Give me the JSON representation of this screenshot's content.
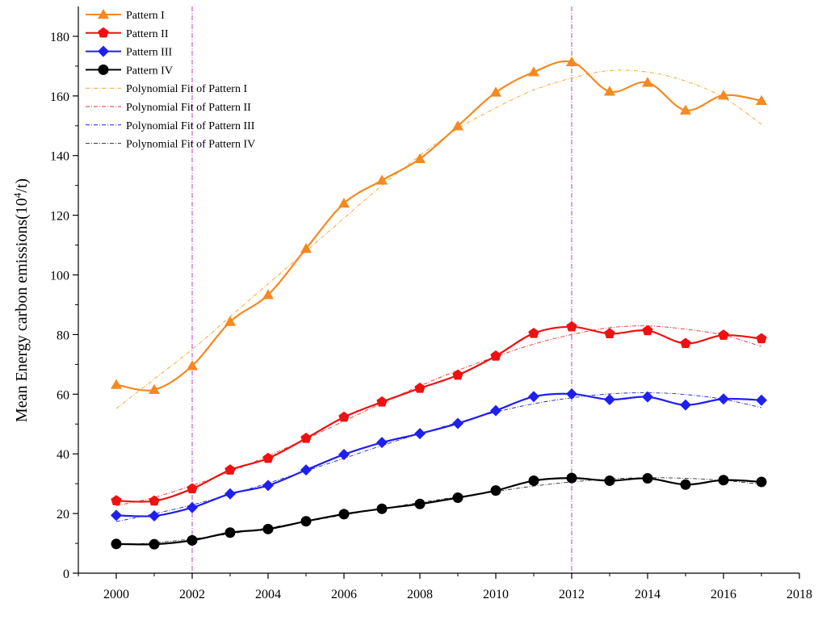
{
  "chart_data": {
    "type": "line",
    "title": "",
    "xlabel": "",
    "ylabel": "Mean Energy carbon emissions(10⁴/t)",
    "ylabel_parts": {
      "prefix": "Mean Energy carbon emissions(10",
      "superscript": "4",
      "suffix": "/t)"
    },
    "xlim": [
      1999,
      2018
    ],
    "ylim": [
      0,
      190
    ],
    "x_ticks": [
      2000,
      2002,
      2004,
      2006,
      2008,
      2010,
      2012,
      2014,
      2016,
      2018
    ],
    "y_ticks": [
      0,
      20,
      40,
      60,
      80,
      100,
      120,
      140,
      160,
      180
    ],
    "reference_lines_x": [
      2002,
      2012
    ],
    "legend_position": "top-left",
    "x": [
      2000,
      2001,
      2002,
      2003,
      2004,
      2005,
      2006,
      2007,
      2008,
      2009,
      2010,
      2011,
      2012,
      2013,
      2014,
      2015,
      2016,
      2017
    ],
    "series": [
      {
        "name": "Pattern I",
        "color": "#F5891F",
        "marker": "triangle",
        "values": [
          63.2,
          61.5,
          69.5,
          84.3,
          93.3,
          108.8,
          124.0,
          131.7,
          138.9,
          149.9,
          161.2,
          168.0,
          171.4,
          161.5,
          164.5,
          155.2,
          160.2,
          158.4
        ]
      },
      {
        "name": "Pattern II",
        "color": "#F01010",
        "marker": "pentagon",
        "values": [
          24.3,
          24.2,
          28.3,
          34.6,
          38.5,
          45.2,
          52.3,
          57.4,
          62.0,
          66.4,
          72.8,
          80.4,
          82.6,
          80.3,
          81.3,
          77.0,
          79.8,
          78.6
        ]
      },
      {
        "name": "Pattern III",
        "color": "#1F1FF0",
        "marker": "diamond",
        "values": [
          19.4,
          19.2,
          22.0,
          26.6,
          29.4,
          34.6,
          39.8,
          43.8,
          46.8,
          50.2,
          54.5,
          59.2,
          60.1,
          58.2,
          59.1,
          56.4,
          58.4,
          58.0
        ]
      },
      {
        "name": "Pattern IV",
        "color": "#000000",
        "marker": "circle",
        "values": [
          9.8,
          9.7,
          11.0,
          13.6,
          14.8,
          17.4,
          19.8,
          21.6,
          23.2,
          25.3,
          27.7,
          31.0,
          31.9,
          31.0,
          31.8,
          29.7,
          31.2,
          30.6
        ]
      }
    ],
    "fits": [
      {
        "name": "Polynomial Fit of Pattern I",
        "color": "#F5A028",
        "values": [
          55.2,
          65.1,
          75.0,
          86.0,
          97.0,
          108.0,
          119.0,
          130.0,
          140.0,
          149.0,
          156.0,
          162.0,
          166.0,
          168.5,
          168.0,
          165.0,
          159.5,
          150.5
        ]
      },
      {
        "name": "Polynomial Fit of Pattern II",
        "color": "#E83030",
        "values": [
          22.6,
          25.4,
          29.4,
          34.0,
          39.3,
          45.0,
          51.0,
          57.0,
          62.8,
          68.0,
          72.6,
          76.8,
          80.0,
          82.3,
          82.9,
          81.8,
          79.8,
          76.0
        ]
      },
      {
        "name": "Polynomial Fit of Pattern III",
        "color": "#2020C0",
        "values": [
          17.3,
          19.9,
          22.9,
          26.4,
          30.2,
          34.3,
          38.5,
          42.8,
          46.8,
          50.5,
          54.0,
          56.8,
          58.8,
          60.1,
          60.5,
          59.9,
          58.3,
          55.5
        ]
      },
      {
        "name": "Polynomial Fit of Pattern IV",
        "color": "#303030",
        "values": [
          9.4,
          10.2,
          11.5,
          13.2,
          15.2,
          17.3,
          19.5,
          21.6,
          23.7,
          25.6,
          27.4,
          29.2,
          30.6,
          31.6,
          32.0,
          31.8,
          31.1,
          29.8
        ]
      }
    ]
  }
}
